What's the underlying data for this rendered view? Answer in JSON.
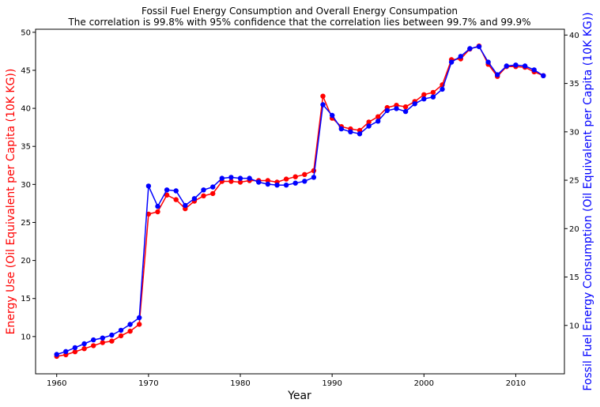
{
  "chart_data": {
    "type": "line",
    "title": "Fossil Fuel Energy Consumption and Overall Energy Consumpation",
    "subtitle": "The correlation is 99.8% with 95% confidence that the correlation lies between 99.7% and 99.9%",
    "xlabel": "Year",
    "ylabel_left": "Energy Use (Oil Equivalent per Capita (10K KG))",
    "ylabel_right": "Fossil Fuel Energy Consumption (Oil Equivalent per Capita (10K KG))",
    "xlim": [
      1957.7,
      2015.3
    ],
    "ylim_left": [
      5.1,
      50.4
    ],
    "ylim_right": [
      5.0,
      40.6
    ],
    "x_ticks": [
      1960,
      1970,
      1980,
      1990,
      2000,
      2010
    ],
    "y_ticks_left": [
      10,
      15,
      20,
      25,
      30,
      35,
      40,
      45,
      50
    ],
    "y_ticks_right": [
      10,
      15,
      20,
      25,
      30,
      35,
      40
    ],
    "grid": false,
    "colors": {
      "left_series": "#ff0000",
      "right_series": "#0000ff"
    },
    "x": [
      1960,
      1961,
      1962,
      1963,
      1964,
      1965,
      1966,
      1967,
      1968,
      1969,
      1970,
      1971,
      1972,
      1973,
      1974,
      1975,
      1976,
      1977,
      1978,
      1979,
      1980,
      1981,
      1982,
      1983,
      1984,
      1985,
      1986,
      1987,
      1988,
      1989,
      1990,
      1991,
      1992,
      1993,
      1994,
      1995,
      1996,
      1997,
      1998,
      1999,
      2000,
      2001,
      2002,
      2003,
      2004,
      2005,
      2006,
      2007,
      2008,
      2009,
      2010,
      2011,
      2012,
      2013
    ],
    "series": [
      {
        "axis": "left",
        "color": "#ff0000",
        "values": [
          7.4,
          7.6,
          8.0,
          8.4,
          8.8,
          9.2,
          9.4,
          10.1,
          10.7,
          11.6,
          26.1,
          26.4,
          28.6,
          28.0,
          26.8,
          27.8,
          28.5,
          28.8,
          30.4,
          30.4,
          30.3,
          30.5,
          30.5,
          30.5,
          30.3,
          30.7,
          31.0,
          31.3,
          31.8,
          41.6,
          38.7,
          37.6,
          37.3,
          37.1,
          38.2,
          38.9,
          40.1,
          40.4,
          40.2,
          40.9,
          41.8,
          42.1,
          43.1,
          46.4,
          46.5,
          47.8,
          48.2,
          45.8,
          44.2,
          45.5,
          45.5,
          45.4,
          44.8,
          44.3
        ]
      },
      {
        "axis": "right",
        "color": "#0000ff",
        "values": [
          7.0,
          7.3,
          7.7,
          8.1,
          8.5,
          8.7,
          9.0,
          9.5,
          10.1,
          10.8,
          24.4,
          22.3,
          24.0,
          23.9,
          22.4,
          23.1,
          24.0,
          24.3,
          25.2,
          25.3,
          25.2,
          25.2,
          24.8,
          24.6,
          24.5,
          24.5,
          24.7,
          24.9,
          25.3,
          32.8,
          31.7,
          30.3,
          30.0,
          29.8,
          30.6,
          31.1,
          32.2,
          32.4,
          32.1,
          32.9,
          33.4,
          33.6,
          34.4,
          37.2,
          37.8,
          38.6,
          38.8,
          37.2,
          35.9,
          36.8,
          36.9,
          36.8,
          36.4,
          35.8
        ]
      }
    ]
  }
}
